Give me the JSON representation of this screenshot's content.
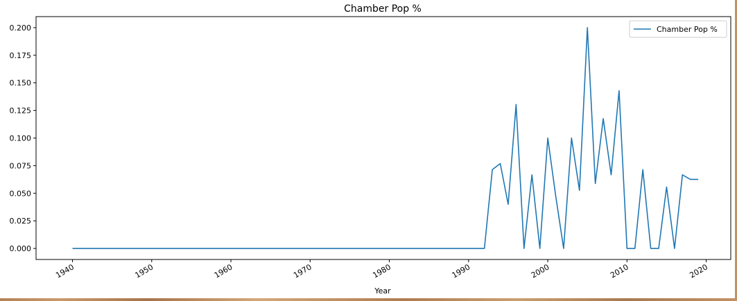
{
  "chart_data": {
    "type": "line",
    "title": "Chamber Pop %",
    "xlabel": "Year",
    "ylabel": "",
    "xlim": [
      1935.4,
      2023.1
    ],
    "ylim": [
      -0.01,
      0.21
    ],
    "xticks": [
      1940,
      1950,
      1960,
      1970,
      1980,
      1990,
      2000,
      2010,
      2020
    ],
    "yticks": [
      0.0,
      0.025,
      0.05,
      0.075,
      0.1,
      0.125,
      0.15,
      0.175,
      0.2
    ],
    "ytick_labels": [
      "0.000",
      "0.025",
      "0.050",
      "0.075",
      "0.100",
      "0.125",
      "0.150",
      "0.175",
      "0.200"
    ],
    "grid": false,
    "legend_position": "top-right",
    "series": [
      {
        "name": "Chamber Pop %",
        "color": "#1f77b4",
        "x": [
          1940,
          1941,
          1942,
          1943,
          1944,
          1945,
          1946,
          1947,
          1948,
          1949,
          1950,
          1951,
          1952,
          1953,
          1954,
          1955,
          1956,
          1957,
          1958,
          1959,
          1960,
          1961,
          1962,
          1963,
          1964,
          1965,
          1966,
          1967,
          1968,
          1969,
          1970,
          1971,
          1972,
          1973,
          1974,
          1975,
          1976,
          1977,
          1978,
          1979,
          1980,
          1981,
          1982,
          1983,
          1984,
          1985,
          1986,
          1987,
          1988,
          1989,
          1990,
          1991,
          1992,
          1993,
          1994,
          1995,
          1996,
          1997,
          1998,
          1999,
          2000,
          2001,
          2002,
          2003,
          2004,
          2005,
          2006,
          2007,
          2008,
          2009,
          2010,
          2011,
          2012,
          2013,
          2014,
          2015,
          2016,
          2017,
          2018,
          2019
        ],
        "values": [
          0,
          0,
          0,
          0,
          0,
          0,
          0,
          0,
          0,
          0,
          0,
          0,
          0,
          0,
          0,
          0,
          0,
          0,
          0,
          0,
          0,
          0,
          0,
          0,
          0,
          0,
          0,
          0,
          0,
          0,
          0,
          0,
          0,
          0,
          0,
          0,
          0,
          0,
          0,
          0,
          0,
          0,
          0,
          0,
          0,
          0,
          0,
          0,
          0,
          0,
          0,
          0,
          0,
          0.0714,
          0.0769,
          0.04,
          0.1304,
          0,
          0.0667,
          0,
          0.1,
          0.0476,
          0,
          0.1,
          0.0526,
          0.2,
          0.0588,
          0.1176,
          0.0667,
          0.1429,
          0,
          0,
          0.0714,
          0,
          0,
          0.0556,
          0,
          0.0667,
          0.0625,
          0.0625
        ]
      }
    ]
  }
}
